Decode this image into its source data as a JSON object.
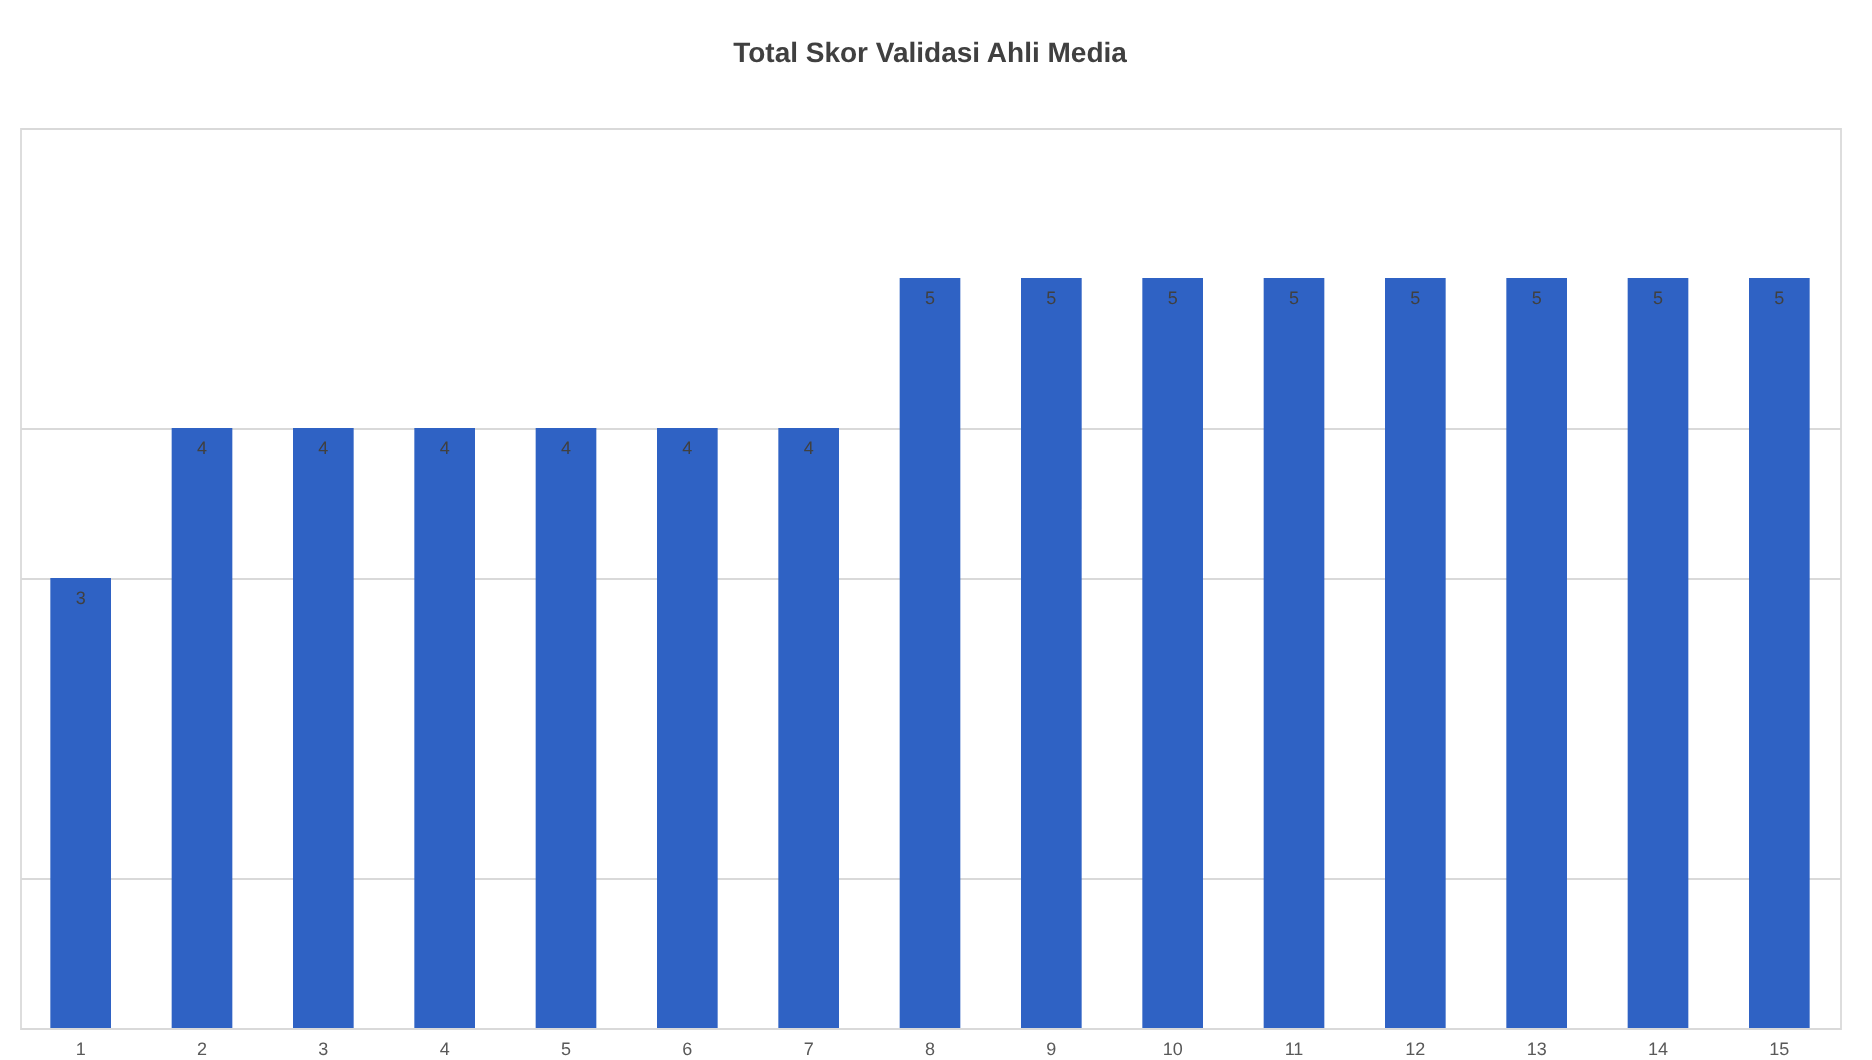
{
  "chart_data": {
    "type": "bar",
    "title": "Total Skor Validasi Ahli Media",
    "categories": [
      "1",
      "2",
      "3",
      "4",
      "5",
      "6",
      "7",
      "8",
      "9",
      "10",
      "11",
      "12",
      "13",
      "14",
      "15"
    ],
    "values": [
      3,
      4,
      4,
      4,
      4,
      4,
      4,
      5,
      5,
      5,
      5,
      5,
      5,
      5,
      5
    ],
    "color": "#2f62c4",
    "ylim": [
      0,
      6
    ],
    "yticks": [
      {
        "value": 0,
        "label": null
      },
      {
        "value": 1,
        "label": null
      },
      {
        "value": 3,
        "label": null
      },
      {
        "value": 4,
        "label": null
      },
      {
        "value": 6,
        "label": null
      }
    ],
    "tick_labels": "x",
    "grid": "y",
    "data_labels": true
  }
}
